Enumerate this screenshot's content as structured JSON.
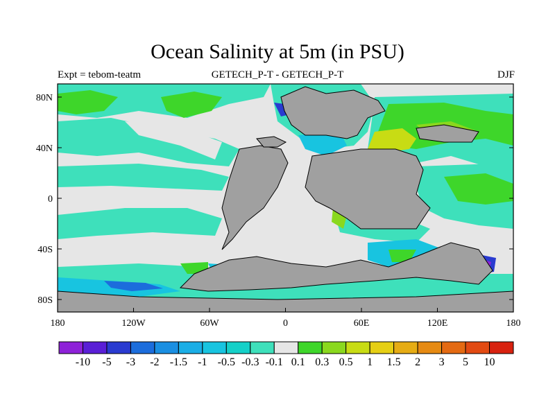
{
  "title": "Ocean Salinity at 5m (in PSU)",
  "subtitle_left": "Expt = tebom-teatm",
  "subtitle_center": "GETECH_P-T - GETECH_P-T",
  "subtitle_right": "DJF",
  "lat_ticks": [
    "80N",
    "40N",
    "0",
    "40S",
    "80S"
  ],
  "lon_ticks": [
    "180",
    "120W",
    "60W",
    "0",
    "60E",
    "120E",
    "180"
  ],
  "colorbar": {
    "labels": [
      "-10",
      "-5",
      "-3",
      "-2",
      "-1.5",
      "-1",
      "-0.5",
      "-0.3",
      "-0.1",
      "0.1",
      "0.3",
      "0.5",
      "1",
      "1.5",
      "2",
      "3",
      "5",
      "10"
    ],
    "colors": [
      "#8e22d8",
      "#5a1fd6",
      "#2a3bd0",
      "#1c6ddc",
      "#1a8fe2",
      "#1aaee6",
      "#18c4e0",
      "#14d0c8",
      "#3ee0bb",
      "#e6e6e6",
      "#3ed62a",
      "#8ad81e",
      "#c8dc14",
      "#e6cf14",
      "#e6ac14",
      "#e68a12",
      "#e46a12",
      "#e24a12",
      "#d8220f"
    ]
  },
  "palette": {
    "land": "#a0a0a0",
    "neutral": "#e6e6e6",
    "fresh_cyan": "#18c4e0",
    "fresh_teal": "#3ee0bb",
    "saline_green": "#3ed62a",
    "saline_lime": "#8ad81e",
    "saline_yellow": "#c8dc14",
    "saline_orange": "#e6ac14",
    "fresh_blue": "#2a3bd0"
  }
}
